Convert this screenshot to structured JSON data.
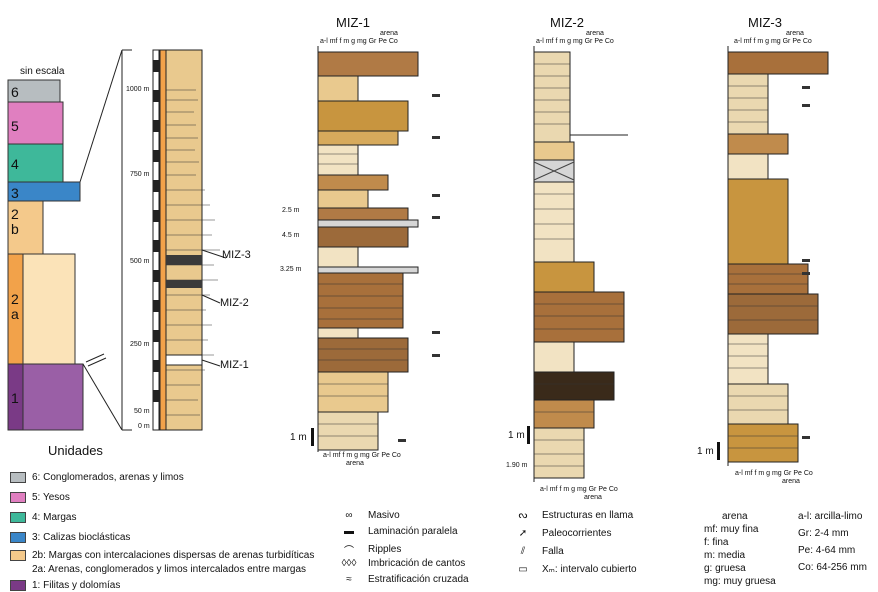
{
  "overview": {
    "scale_label": "sin escala",
    "units": [
      "6",
      "5",
      "4",
      "3",
      "2\nb",
      "2\na",
      "1"
    ],
    "unit_colors": [
      "#b7bdc0",
      "#e07fc0",
      "#3eb89a",
      "#3a86c8",
      "#f4c98b",
      "#f2a24a",
      "#7a3a86"
    ],
    "depths": [
      "1000 m",
      "750 m",
      "500 m",
      "250 m",
      "50 m",
      "0 m"
    ],
    "section_labels": [
      "MIZ-3",
      "MIZ-2",
      "MIZ-1"
    ]
  },
  "sections": {
    "miz1": {
      "title": "MIZ-1",
      "thick_labels": [
        "2.5 m",
        "4.5 m",
        "3.25 m"
      ],
      "scale": "1 m"
    },
    "miz2": {
      "title": "MIZ-2",
      "thick_labels": [
        "1.90 m"
      ],
      "scale": "1 m"
    },
    "miz3": {
      "title": "MIZ-3",
      "scale": "1 m"
    }
  },
  "grain_header": {
    "arena": "arena",
    "ticks": "a-l mf f m g mg Gr Pe Co"
  },
  "legend": {
    "title": "Unidades",
    "items": [
      {
        "label": "6: Conglomerados, arenas y limos",
        "color": "#b7bdc0"
      },
      {
        "label": "5: Yesos",
        "color": "#e07fc0"
      },
      {
        "label": "4: Margas",
        "color": "#3eb89a"
      },
      {
        "label": "3: Calizas bioclásticas",
        "color": "#3a86c8"
      },
      {
        "label": "2b: Margas con intercalaciones dispersas de arenas turbidíticas",
        "color": "#f4c98b"
      },
      {
        "label": "2a: Arenas, conglomerados y limos intercalados entre margas",
        "color": "#f2a24a"
      },
      {
        "label": "1: Filitas y dolomías",
        "color": "#7a3a86"
      }
    ]
  },
  "symbols": {
    "col1": [
      {
        "sym": "∞",
        "label": "Masivo"
      },
      {
        "sym": "▬",
        "label": "Laminación paralela"
      },
      {
        "sym": "⌒",
        "label": "Ripples"
      },
      {
        "sym": "◊◊◊",
        "label": "Imbricación de cantos"
      },
      {
        "sym": "≈",
        "label": "Estratificación cruzada"
      }
    ],
    "col2": [
      {
        "sym": "ᔓ",
        "label": "Estructuras en llama"
      },
      {
        "sym": "➚",
        "label": "Paleocorrientes"
      },
      {
        "sym": "⫽",
        "label": "Falla"
      },
      {
        "sym": "▭",
        "label": "Xₘ: intervalo cubierto"
      }
    ]
  },
  "grain_legend": {
    "col1": [
      "arena",
      "mf: muy fina",
      "f: fina",
      "m: media",
      "g: gruesa",
      "mg: muy gruesa"
    ],
    "col2": [
      "a-l: arcilla-limo",
      "Gr: 2-4 mm",
      "Pe: 4-64 mm",
      "Co: 64-256 mm"
    ]
  }
}
